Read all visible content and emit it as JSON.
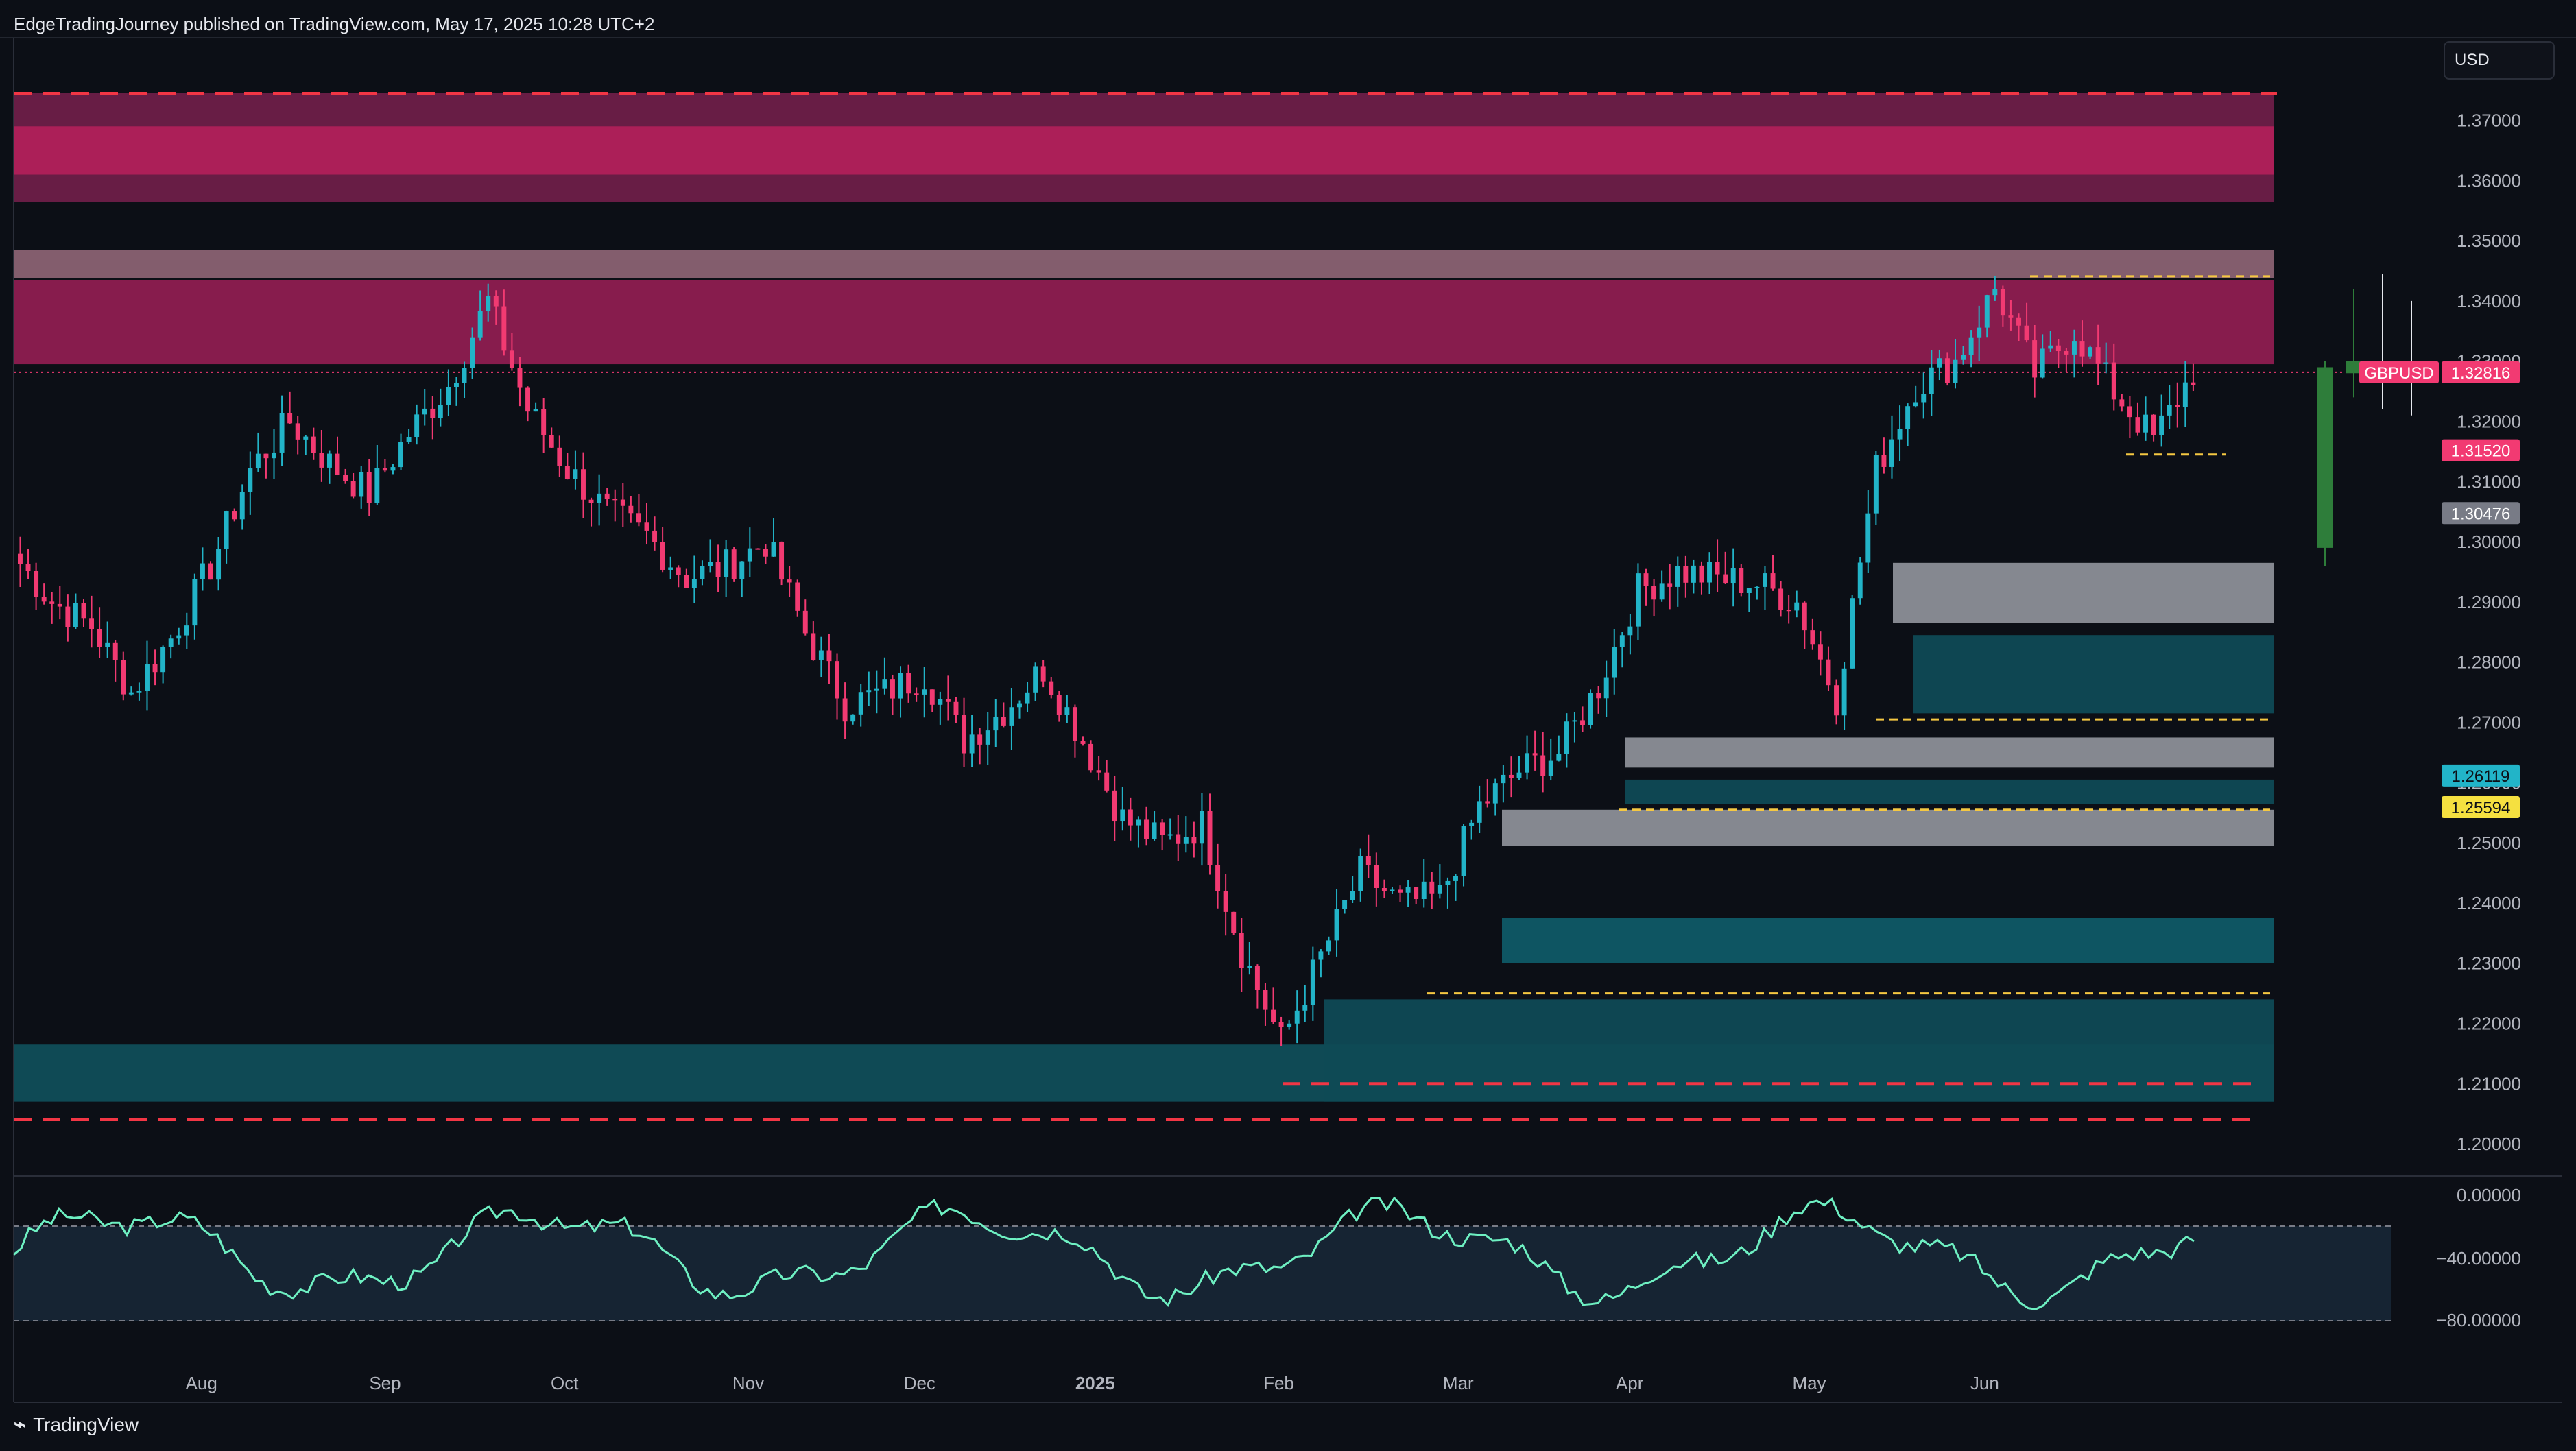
{
  "header": {
    "attribution": "EdgeTradingJourney published on TradingView.com, May 17, 2025 10:28 UTC+2"
  },
  "currency_button": "USD",
  "footer": {
    "brand": "TradingView",
    "logo_icon": "tradingview-logo-icon"
  },
  "colors": {
    "bull": "#22b4c8",
    "bear": "#f23a72",
    "background": "#0c0f16",
    "rsi_line": "#6ef0c2",
    "level": "#f23645"
  },
  "chart_data": {
    "type": "candlestick",
    "symbol": "GBPUSD",
    "price_axis": {
      "min": 1.195,
      "max": 1.375,
      "ticks": [
        "1.37000",
        "1.36000",
        "1.35000",
        "1.34000",
        "1.33000",
        "1.32000",
        "1.31000",
        "1.30000",
        "1.29000",
        "1.28000",
        "1.27000",
        "1.26000",
        "1.25000",
        "1.24000",
        "1.23000",
        "1.22000",
        "1.21000",
        "1.20000"
      ]
    },
    "time_axis": {
      "labels": [
        "Aug",
        "Sep",
        "Oct",
        "Nov",
        "Dec",
        "2025",
        "Feb",
        "Mar",
        "Apr",
        "May",
        "Jun"
      ],
      "label_weeks": [
        4.6,
        9.1,
        13.5,
        18.0,
        22.2,
        26.5,
        31.0,
        35.4,
        39.6,
        44.0,
        48.3
      ]
    },
    "price_labels": [
      {
        "text": "GBPUSD",
        "value": "1.32816",
        "price": 1.32816,
        "color": "#f23a72"
      },
      {
        "text": "1.31520",
        "price": 1.3152,
        "color": "#f23a72"
      },
      {
        "text": "1.30476",
        "price": 1.30476,
        "color": "#787b86"
      },
      {
        "text": "1.26119",
        "price": 1.26119,
        "color": "#22b4c8"
      },
      {
        "text": "1.25594",
        "price": 1.25594,
        "color": "#f5e040"
      }
    ],
    "weekly_closes": [
      1.298,
      1.29,
      1.286,
      1.275,
      1.284,
      1.296,
      1.312,
      1.32,
      1.313,
      1.308,
      1.318,
      1.326,
      1.34,
      1.322,
      1.312,
      1.305,
      1.301,
      1.294,
      1.296,
      1.3,
      1.285,
      1.273,
      1.275,
      1.278,
      1.267,
      1.272,
      1.279,
      1.267,
      1.254,
      1.25,
      1.253,
      1.232,
      1.217,
      1.231,
      1.245,
      1.24,
      1.241,
      1.256,
      1.262,
      1.265,
      1.276,
      1.292,
      1.295,
      1.294,
      1.293,
      1.29,
      1.274,
      1.312,
      1.326,
      1.33,
      1.342,
      1.328,
      1.335,
      1.325,
      1.317,
      1.3282
    ],
    "zones": [
      {
        "top": 1.3745,
        "bottom": 1.3565,
        "color": "#6e1f48"
      },
      {
        "top": 1.369,
        "bottom": 1.361,
        "color": "#b0205a"
      },
      {
        "top": 1.3485,
        "bottom": 1.3438,
        "color": "#8a6272"
      },
      {
        "top": 1.3435,
        "bottom": 1.3295,
        "color": "#8e1d50"
      },
      {
        "top": 1.2965,
        "bottom": 1.2865,
        "color": "#8c8f97"
      },
      {
        "top": 1.2845,
        "bottom": 1.2715,
        "color": "#0f4a55"
      },
      {
        "top": 1.2675,
        "bottom": 1.2625,
        "color": "#8c8f97"
      },
      {
        "top": 1.2605,
        "bottom": 1.2565,
        "color": "#0f4a55"
      },
      {
        "top": 1.2555,
        "bottom": 1.2495,
        "color": "#8c8f97"
      },
      {
        "top": 1.2375,
        "bottom": 1.23,
        "color": "#0f5a66"
      },
      {
        "top": 1.224,
        "bottom": 1.207,
        "color": "#0f4a55"
      }
    ],
    "levels": [
      1.3745,
      1.204,
      1.21
    ],
    "oscillator": {
      "ticks": [
        "0.00000",
        "−40.00000",
        "−80.00000"
      ],
      "band_upper": -20,
      "band_lower": -80,
      "min": -100,
      "max": 0
    }
  }
}
